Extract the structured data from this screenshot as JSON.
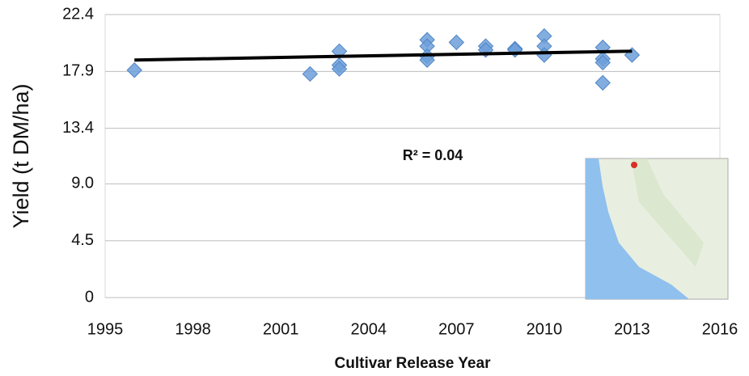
{
  "chart_data": {
    "type": "scatter",
    "x_label": "Cultivar Release Year",
    "y_label": "Yield (t DM/ha)",
    "annotation": "R² = 0.04",
    "x": [
      1996,
      2002,
      2003,
      2003,
      2003,
      2006,
      2006,
      2006,
      2006,
      2007,
      2008,
      2008,
      2009,
      2009,
      2010,
      2010,
      2010,
      2012,
      2012,
      2012,
      2012,
      2013
    ],
    "values": [
      18.0,
      17.7,
      19.5,
      18.4,
      18.1,
      20.4,
      19.9,
      19.1,
      18.8,
      20.2,
      19.9,
      19.6,
      19.7,
      19.6,
      20.7,
      19.9,
      19.2,
      19.8,
      18.9,
      18.6,
      17.0,
      19.2
    ],
    "color": "#6d9fd9",
    "trendline": {
      "x": [
        1996,
        2013
      ],
      "values": [
        18.8,
        19.5
      ],
      "color": "#000000"
    },
    "xlim": [
      1995,
      2016
    ],
    "xticks": [
      1995,
      1998,
      2001,
      2004,
      2007,
      2010,
      2013,
      2016
    ],
    "ylim": [
      0,
      22.4
    ],
    "yticks": [
      0,
      4.5,
      {
        "value": 9,
        "label": "9.0"
      },
      13.4,
      17.9,
      22.4
    ],
    "grid": true
  }
}
